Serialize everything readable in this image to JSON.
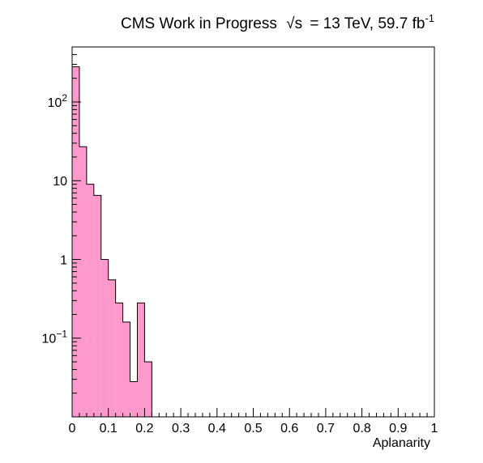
{
  "chart_data": {
    "type": "bar",
    "title_prefix": "CMS Work in Progress",
    "title_sqrt_symbol": "√",
    "title_sqrt_var": "s",
    "title_suffix": "= 13 TeV, 59.7 fb",
    "title_superscript": "-1",
    "xlabel": "Aplanarity",
    "ylabel": "",
    "xlim": [
      0,
      1
    ],
    "ylim": [
      0.01,
      500
    ],
    "y_scale": "log",
    "bin_width": 0.02,
    "fill_color": "#ff99cc",
    "edge_color": "#000000",
    "x_ticks": [
      {
        "value": 0,
        "label": "0"
      },
      {
        "value": 0.1,
        "label": "0.1"
      },
      {
        "value": 0.2,
        "label": "0.2"
      },
      {
        "value": 0.3,
        "label": "0.3"
      },
      {
        "value": 0.4,
        "label": "0.4"
      },
      {
        "value": 0.5,
        "label": "0.5"
      },
      {
        "value": 0.6,
        "label": "0.6"
      },
      {
        "value": 0.7,
        "label": "0.7"
      },
      {
        "value": 0.8,
        "label": "0.8"
      },
      {
        "value": 0.9,
        "label": "0.9"
      },
      {
        "value": 1,
        "label": "1"
      }
    ],
    "y_ticks": [
      {
        "value": 0.1,
        "base": "10",
        "exp": "−1"
      },
      {
        "value": 1,
        "base": "1",
        "exp": ""
      },
      {
        "value": 10,
        "base": "10",
        "exp": ""
      },
      {
        "value": 100,
        "base": "10",
        "exp": "2"
      }
    ],
    "bins": [
      {
        "x": 0.0,
        "y": 280
      },
      {
        "x": 0.02,
        "y": 27
      },
      {
        "x": 0.04,
        "y": 9
      },
      {
        "x": 0.06,
        "y": 6.5
      },
      {
        "x": 0.08,
        "y": 1.0
      },
      {
        "x": 0.1,
        "y": 0.55
      },
      {
        "x": 0.12,
        "y": 0.28
      },
      {
        "x": 0.14,
        "y": 0.16
      },
      {
        "x": 0.16,
        "y": 0.028
      },
      {
        "x": 0.18,
        "y": 0.28
      },
      {
        "x": 0.2,
        "y": 0.05
      }
    ]
  }
}
